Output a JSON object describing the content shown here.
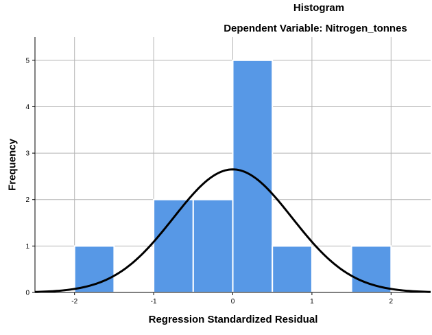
{
  "chart_data": {
    "type": "bar",
    "title": "Histogram",
    "subtitle": "Dependent Variable: Nitrogen_tonnes",
    "xlabel": "Regression Standardized Residual",
    "ylabel": "Frequency",
    "xlim": [
      -2.5,
      2.5
    ],
    "ylim": [
      0,
      5.5
    ],
    "xticks": [
      -2,
      -1,
      0,
      1,
      2
    ],
    "yticks": [
      0,
      1,
      2,
      3,
      4,
      5
    ],
    "bin_width": 0.5,
    "bins": [
      {
        "start": -2.0,
        "end": -1.5,
        "count": 1
      },
      {
        "start": -1.5,
        "end": -1.0,
        "count": 0
      },
      {
        "start": -1.0,
        "end": -0.5,
        "count": 2
      },
      {
        "start": -0.5,
        "end": 0.0,
        "count": 2
      },
      {
        "start": 0.0,
        "end": 0.5,
        "count": 5
      },
      {
        "start": 0.5,
        "end": 1.0,
        "count": 1
      },
      {
        "start": 1.0,
        "end": 1.5,
        "count": 0
      },
      {
        "start": 1.5,
        "end": 2.0,
        "count": 1
      }
    ],
    "normal_curve": {
      "mean": 0,
      "std": 0.75,
      "peak": 2.65
    },
    "grid": true,
    "colors": {
      "bar": "#5798e6",
      "bar_edge": "#ffffff",
      "curve": "#000000",
      "grid": "#b4b4b4"
    }
  }
}
